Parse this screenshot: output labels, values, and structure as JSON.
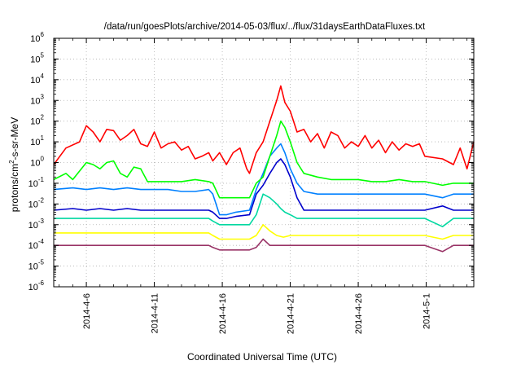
{
  "chart_data": {
    "type": "line",
    "title": "/data/run/goesPlots/archive/2014-05-03/flux/../flux/31daysEarthDataFluxes.txt",
    "xlabel": "Coordinated Universal Time (UTC)",
    "ylabel": "protons/cm2-s-sr-MeV",
    "ylabel_parts": {
      "before": "protons/cm",
      "sup": "2",
      "after": "-s-sr-MeV"
    },
    "yscale": "log",
    "ylim_exp": [
      -6,
      6
    ],
    "ytick_exponents": [
      -6,
      -5,
      -4,
      -3,
      -2,
      -1,
      0,
      1,
      2,
      3,
      4,
      5,
      6
    ],
    "ytick_base": "10",
    "x_unit": "day of April 2014 (May 1 = 31)",
    "xlim": [
      3.6,
      34.5
    ],
    "xticks": [
      {
        "day": 6,
        "label": "2014-4-6"
      },
      {
        "day": 11,
        "label": "2014-4-11"
      },
      {
        "day": 16,
        "label": "2014-4-16"
      },
      {
        "day": 21,
        "label": "2014-4-21"
      },
      {
        "day": 26,
        "label": "2014-4-26"
      },
      {
        "day": 31,
        "label": "2014-5-1"
      }
    ],
    "grid": true,
    "series": [
      {
        "color": "#ff0000",
        "x": [
          3.6,
          4.5,
          5.5,
          6.0,
          6.5,
          7.0,
          7.5,
          8.0,
          8.5,
          9.0,
          9.5,
          10.0,
          10.5,
          11.0,
          11.5,
          12.0,
          12.5,
          13.0,
          13.5,
          14.0,
          14.5,
          15.0,
          15.3,
          15.8,
          16.3,
          16.8,
          17.3,
          17.8,
          18.0,
          18.5,
          19.0,
          19.5,
          20.0,
          20.3,
          20.6,
          21.0,
          21.5,
          22.0,
          22.5,
          23.0,
          23.5,
          24.0,
          24.5,
          25.0,
          25.5,
          26.0,
          26.5,
          27.0,
          27.5,
          28.0,
          28.5,
          29.0,
          29.5,
          30.0,
          30.5,
          30.9,
          32.2,
          33.0,
          33.5,
          34.0,
          34.5
        ],
        "y": [
          0.8,
          5,
          10,
          60,
          30,
          10,
          40,
          35,
          12,
          20,
          40,
          8,
          6,
          30,
          5,
          8,
          10,
          4,
          6,
          1.5,
          2,
          3,
          1.2,
          3,
          0.8,
          3,
          5,
          0.5,
          0.3,
          3,
          10,
          100,
          1000,
          5000,
          800,
          300,
          30,
          40,
          10,
          25,
          5,
          30,
          20,
          5,
          10,
          6,
          20,
          5,
          12,
          3,
          10,
          4,
          8,
          6,
          8,
          2,
          1.5,
          0.8,
          5,
          0.5,
          10
        ]
      },
      {
        "color": "#00ff00",
        "x": [
          3.6,
          4.5,
          5.0,
          6.0,
          6.5,
          7.0,
          7.5,
          8.0,
          8.5,
          9.0,
          9.5,
          10.0,
          10.5,
          11.0,
          12.0,
          13.0,
          14.0,
          15.0,
          15.3,
          15.8,
          16.3,
          17.0,
          17.5,
          18.0,
          18.5,
          19.0,
          19.5,
          20.0,
          20.3,
          20.6,
          21.0,
          21.5,
          22.0,
          23.0,
          24.0,
          25.0,
          26.0,
          27.0,
          28.0,
          29.0,
          30.0,
          30.9,
          32.2,
          33.0,
          34.0,
          34.5
        ],
        "y": [
          0.15,
          0.3,
          0.15,
          1,
          0.8,
          0.5,
          1,
          1.2,
          0.3,
          0.2,
          0.6,
          0.5,
          0.12,
          0.12,
          0.12,
          0.12,
          0.15,
          0.12,
          0.1,
          0.02,
          0.02,
          0.02,
          0.02,
          0.02,
          0.1,
          0.2,
          2,
          20,
          100,
          50,
          10,
          1,
          0.3,
          0.2,
          0.15,
          0.15,
          0.15,
          0.12,
          0.12,
          0.15,
          0.12,
          0.12,
          0.08,
          0.1,
          0.1,
          0.1
        ]
      },
      {
        "color": "#0080ff",
        "x": [
          3.6,
          5.0,
          6.0,
          7.0,
          8.0,
          9.0,
          10.0,
          11.0,
          12.0,
          13.0,
          14.0,
          15.0,
          15.3,
          15.8,
          16.3,
          17.0,
          18.0,
          18.5,
          19.0,
          19.5,
          20.0,
          20.3,
          20.6,
          21.0,
          21.5,
          22.0,
          23.0,
          24.0,
          25.0,
          26.0,
          27.0,
          28.0,
          29.0,
          30.0,
          30.9,
          32.2,
          33.0,
          34.0,
          34.5
        ],
        "y": [
          0.05,
          0.06,
          0.05,
          0.06,
          0.05,
          0.06,
          0.05,
          0.05,
          0.05,
          0.04,
          0.04,
          0.05,
          0.03,
          0.003,
          0.003,
          0.004,
          0.005,
          0.05,
          0.3,
          2,
          5,
          8,
          3,
          0.5,
          0.1,
          0.04,
          0.03,
          0.03,
          0.03,
          0.03,
          0.03,
          0.03,
          0.03,
          0.03,
          0.03,
          0.02,
          0.03,
          0.03,
          0.03
        ]
      },
      {
        "color": "#0000cc",
        "x": [
          3.6,
          5.0,
          6.0,
          7.0,
          8.0,
          9.0,
          10.0,
          11.0,
          12.0,
          13.0,
          14.0,
          15.0,
          15.3,
          15.8,
          16.3,
          17.0,
          18.0,
          18.5,
          19.0,
          19.5,
          20.0,
          20.3,
          20.6,
          21.0,
          21.5,
          22.0,
          23.0,
          24.0,
          25.0,
          26.0,
          27.0,
          28.0,
          29.0,
          30.0,
          30.9,
          32.2,
          33.0,
          34.0,
          34.5
        ],
        "y": [
          0.005,
          0.006,
          0.005,
          0.006,
          0.005,
          0.006,
          0.005,
          0.005,
          0.005,
          0.005,
          0.005,
          0.005,
          0.004,
          0.002,
          0.002,
          0.0025,
          0.003,
          0.03,
          0.08,
          0.3,
          1,
          1.5,
          0.8,
          0.2,
          0.02,
          0.005,
          0.005,
          0.005,
          0.005,
          0.005,
          0.005,
          0.005,
          0.005,
          0.005,
          0.005,
          0.008,
          0.005,
          0.005,
          0.005
        ]
      },
      {
        "color": "#00d8a0",
        "x": [
          3.6,
          5.0,
          6.0,
          7.0,
          8.0,
          9.0,
          10.0,
          11.0,
          12.0,
          13.0,
          14.0,
          15.0,
          15.3,
          15.8,
          16.3,
          17.0,
          18.0,
          18.5,
          19.0,
          19.5,
          20.0,
          20.3,
          20.6,
          21.0,
          21.5,
          22.0,
          23.0,
          24.0,
          25.0,
          26.0,
          27.0,
          28.0,
          29.0,
          30.0,
          30.9,
          32.2,
          33.0,
          34.0,
          34.5
        ],
        "y": [
          0.002,
          0.002,
          0.002,
          0.002,
          0.002,
          0.002,
          0.002,
          0.002,
          0.002,
          0.002,
          0.002,
          0.002,
          0.0015,
          0.001,
          0.001,
          0.001,
          0.001,
          0.003,
          0.03,
          0.02,
          0.01,
          0.006,
          0.004,
          0.003,
          0.002,
          0.002,
          0.002,
          0.002,
          0.002,
          0.002,
          0.002,
          0.002,
          0.002,
          0.002,
          0.002,
          0.0008,
          0.002,
          0.002,
          0.002
        ]
      },
      {
        "color": "#ffff00",
        "x": [
          3.6,
          5.0,
          7.0,
          9.0,
          11.0,
          13.0,
          15.0,
          15.3,
          15.8,
          16.3,
          17.0,
          18.0,
          18.5,
          19.0,
          19.5,
          20.0,
          20.5,
          21.0,
          22.0,
          24.0,
          26.0,
          28.0,
          30.0,
          30.9,
          32.2,
          33.0,
          34.5
        ],
        "y": [
          0.0004,
          0.0004,
          0.0004,
          0.0004,
          0.0004,
          0.0004,
          0.0004,
          0.0003,
          0.0002,
          0.0002,
          0.0002,
          0.0002,
          0.0003,
          0.001,
          0.0005,
          0.0003,
          0.00025,
          0.0003,
          0.0003,
          0.0003,
          0.0003,
          0.0003,
          0.0003,
          0.0003,
          0.0002,
          0.0003,
          0.0003
        ]
      },
      {
        "color": "#993366",
        "x": [
          3.6,
          5.0,
          7.0,
          9.0,
          11.0,
          13.0,
          15.0,
          15.3,
          15.8,
          16.3,
          17.0,
          18.0,
          18.5,
          19.0,
          19.5,
          20.0,
          20.5,
          21.0,
          22.0,
          24.0,
          26.0,
          28.0,
          30.0,
          30.9,
          32.2,
          33.0,
          34.5
        ],
        "y": [
          0.0001,
          0.0001,
          0.0001,
          0.0001,
          0.0001,
          0.0001,
          0.0001,
          8e-05,
          6e-05,
          6e-05,
          6e-05,
          6e-05,
          8e-05,
          0.0002,
          0.0001,
          0.0001,
          0.0001,
          0.0001,
          0.0001,
          0.0001,
          0.0001,
          0.0001,
          0.0001,
          0.0001,
          5e-05,
          0.0001,
          0.0001
        ]
      }
    ]
  }
}
